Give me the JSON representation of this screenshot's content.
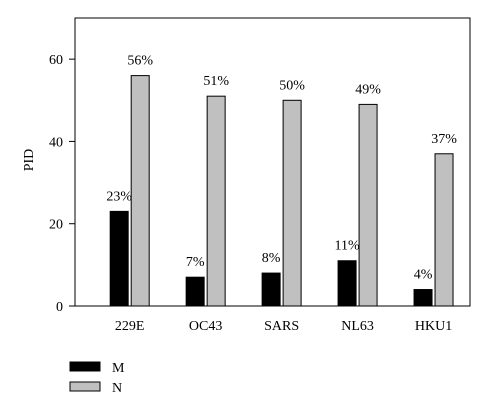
{
  "chart_data": {
    "type": "bar",
    "ylabel": "PID",
    "xlabel": "",
    "ylim": [
      0,
      70
    ],
    "yticks": [
      0,
      20,
      40,
      60
    ],
    "categories": [
      "229E",
      "OC43",
      "SARS",
      "NL63",
      "HKU1"
    ],
    "series": [
      {
        "name": "M",
        "values": [
          23,
          7,
          8,
          11,
          4
        ],
        "labels": [
          "23%",
          "7%",
          "8%",
          "11%",
          "4%"
        ],
        "color": "#000000"
      },
      {
        "name": "N",
        "values": [
          56,
          51,
          50,
          49,
          37
        ],
        "labels": [
          "56%",
          "51%",
          "50%",
          "49%",
          "37%"
        ],
        "color": "#c0c0c0"
      }
    ],
    "grid": false,
    "legend": "bottom-left"
  }
}
